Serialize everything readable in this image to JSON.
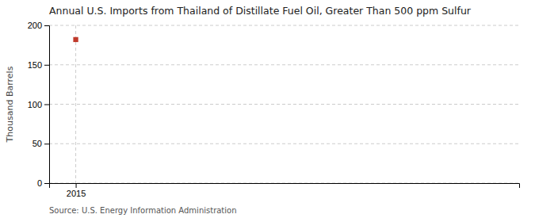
{
  "chart_data": {
    "type": "scatter",
    "title": "Annual U.S. Imports from Thailand of Distillate Fuel Oil, Greater Than 500 ppm Sulfur",
    "ylabel": "Thousand Barrels",
    "source": "Source: U.S. Energy Information Administration",
    "x": [
      2015
    ],
    "values": [
      182
    ],
    "color": "#c0392b",
    "marker": "square",
    "xlim": [
      2014.4,
      2025
    ],
    "xticks": [
      2015
    ],
    "ylim": [
      0,
      200
    ],
    "yticks": [
      0,
      50,
      100,
      150,
      200
    ],
    "grid": true
  }
}
